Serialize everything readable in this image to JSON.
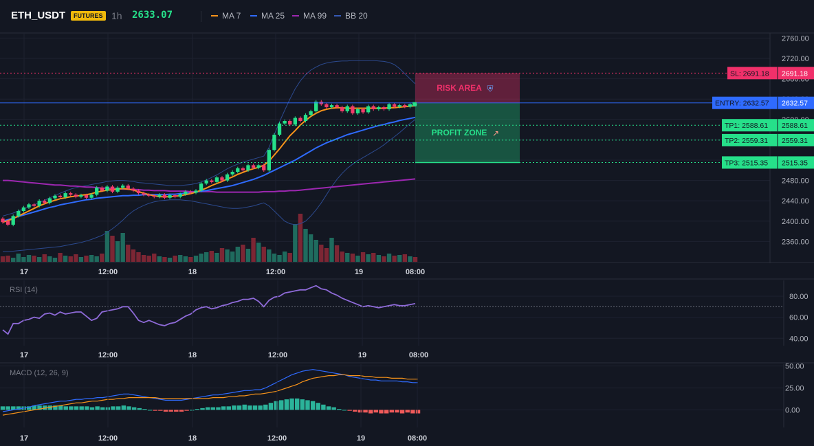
{
  "header": {
    "symbol": "ETH_USDT",
    "badge": "FUTURES",
    "timeframe": "1h",
    "last_price": "2633.07",
    "legend": [
      {
        "label": "MA 7",
        "color": "#f7931a"
      },
      {
        "label": "MA 25",
        "color": "#2f6bff"
      },
      {
        "label": "MA 99",
        "color": "#9c27b0"
      },
      {
        "label": "BB 20",
        "color": "#1e3a8a"
      }
    ]
  },
  "colors": {
    "background": "#131722",
    "grid": "#1e2230",
    "up": "#26e08a",
    "down": "#f23c6a",
    "vol_up": "#1f6b5e",
    "vol_down": "#7c2634"
  },
  "chart_data": [
    {
      "type": "candlestick",
      "name": "price",
      "ylim": [
        2320,
        2770
      ],
      "y_ticks": [
        "2760.00",
        "2720.00",
        "2680.00",
        "2640.00",
        "2600.00",
        "2560.00",
        "2520.00",
        "2480.00",
        "2440.00",
        "2400.00",
        "2360.00"
      ],
      "x_ticks": [
        "17",
        "12:00",
        "18",
        "12:00",
        "19",
        "08:00"
      ],
      "candles_hourly": [
        [
          2405,
          2398
        ],
        [
          2400,
          2393
        ],
        [
          2393,
          2410
        ],
        [
          2410,
          2420
        ],
        [
          2420,
          2427
        ],
        [
          2427,
          2433
        ],
        [
          2433,
          2430
        ],
        [
          2430,
          2440
        ],
        [
          2440,
          2436
        ],
        [
          2436,
          2445
        ],
        [
          2445,
          2450
        ],
        [
          2450,
          2447
        ],
        [
          2447,
          2455
        ],
        [
          2455,
          2452
        ],
        [
          2452,
          2448
        ],
        [
          2448,
          2451
        ],
        [
          2451,
          2446
        ],
        [
          2446,
          2452
        ],
        [
          2452,
          2466
        ],
        [
          2466,
          2460
        ],
        [
          2460,
          2468
        ],
        [
          2468,
          2458
        ],
        [
          2458,
          2466
        ],
        [
          2466,
          2470
        ],
        [
          2470,
          2464
        ],
        [
          2464,
          2460
        ],
        [
          2460,
          2455
        ],
        [
          2455,
          2452
        ],
        [
          2452,
          2450
        ],
        [
          2450,
          2448
        ],
        [
          2448,
          2452
        ],
        [
          2452,
          2446
        ],
        [
          2446,
          2451
        ],
        [
          2451,
          2448
        ],
        [
          2448,
          2453
        ],
        [
          2453,
          2458
        ],
        [
          2458,
          2456
        ],
        [
          2456,
          2460
        ],
        [
          2460,
          2474
        ],
        [
          2474,
          2480
        ],
        [
          2480,
          2477
        ],
        [
          2477,
          2486
        ],
        [
          2486,
          2480
        ],
        [
          2480,
          2492
        ],
        [
          2492,
          2497
        ],
        [
          2497,
          2504
        ],
        [
          2504,
          2500
        ],
        [
          2500,
          2510
        ],
        [
          2510,
          2505
        ],
        [
          2505,
          2510
        ],
        [
          2510,
          2500
        ],
        [
          2500,
          2540
        ],
        [
          2540,
          2570
        ],
        [
          2570,
          2592
        ],
        [
          2592,
          2597
        ],
        [
          2597,
          2590
        ],
        [
          2590,
          2603
        ],
        [
          2603,
          2597
        ],
        [
          2597,
          2609
        ],
        [
          2609,
          2616
        ],
        [
          2616,
          2635
        ],
        [
          2635,
          2630
        ],
        [
          2630,
          2624
        ],
        [
          2624,
          2628
        ],
        [
          2628,
          2624
        ],
        [
          2624,
          2616
        ],
        [
          2616,
          2626
        ],
        [
          2626,
          2612
        ],
        [
          2612,
          2620
        ],
        [
          2620,
          2614
        ],
        [
          2614,
          2626
        ],
        [
          2626,
          2620
        ],
        [
          2620,
          2624
        ],
        [
          2624,
          2620
        ],
        [
          2620,
          2630
        ],
        [
          2630,
          2625
        ],
        [
          2625,
          2628
        ],
        [
          2628,
          2625
        ],
        [
          2625,
          2630
        ],
        [
          2630,
          2628
        ]
      ],
      "volume_hourly": [
        8,
        9,
        6,
        12,
        7,
        10,
        9,
        7,
        11,
        8,
        6,
        13,
        9,
        8,
        11,
        7,
        9,
        10,
        8,
        12,
        45,
        38,
        30,
        42,
        25,
        18,
        14,
        10,
        9,
        12,
        8,
        7,
        6,
        9,
        10,
        8,
        7,
        9,
        12,
        14,
        16,
        13,
        20,
        18,
        15,
        22,
        25,
        19,
        35,
        28,
        22,
        18,
        12,
        10,
        15,
        13,
        55,
        70,
        48,
        40,
        32,
        25,
        20,
        35,
        24,
        15,
        13,
        12,
        9,
        14,
        11,
        13,
        10,
        8,
        12,
        9,
        10,
        11,
        8,
        7
      ],
      "ma7_hourly": [
        2398,
        2401,
        2405,
        2410,
        2415,
        2420,
        2425,
        2430,
        2434,
        2438,
        2441,
        2444,
        2446,
        2448,
        2449,
        2451,
        2452,
        2454,
        2457,
        2459,
        2461,
        2462,
        2463,
        2464,
        2463,
        2461,
        2458,
        2455,
        2452,
        2450,
        2448,
        2448,
        2448,
        2449,
        2450,
        2452,
        2454,
        2457,
        2461,
        2465,
        2470,
        2474,
        2478,
        2483,
        2487,
        2492,
        2496,
        2500,
        2503,
        2506,
        2510,
        2518,
        2530,
        2542,
        2555,
        2568,
        2578,
        2589,
        2598,
        2606,
        2612,
        2617,
        2620,
        2622,
        2623,
        2623,
        2622,
        2622,
        2622,
        2622,
        2622,
        2622,
        2622,
        2622,
        2623,
        2623,
        2624,
        2625,
        2626,
        2627
      ],
      "ma25_hourly": [
        2400,
        2403,
        2406,
        2409,
        2412,
        2415,
        2418,
        2421,
        2424,
        2427,
        2429,
        2432,
        2434,
        2436,
        2438,
        2440,
        2442,
        2443,
        2445,
        2446,
        2447,
        2448,
        2449,
        2450,
        2450,
        2451,
        2451,
        2452,
        2452,
        2452,
        2452,
        2452,
        2453,
        2453,
        2454,
        2455,
        2456,
        2457,
        2459,
        2460,
        2462,
        2464,
        2466,
        2468,
        2470,
        2473,
        2476,
        2479,
        2482,
        2486,
        2490,
        2495,
        2500,
        2505,
        2510,
        2515,
        2520,
        2526,
        2532,
        2538,
        2544,
        2549,
        2554,
        2558,
        2562,
        2566,
        2570,
        2573,
        2576,
        2579,
        2582,
        2585,
        2588,
        2590,
        2593,
        2595,
        2598,
        2600,
        2602,
        2604
      ],
      "ma99_hourly": [
        2480,
        2480,
        2479,
        2478,
        2477,
        2476,
        2475,
        2474,
        2473,
        2472,
        2471,
        2471,
        2470,
        2469,
        2469,
        2468,
        2467,
        2467,
        2466,
        2465,
        2465,
        2464,
        2464,
        2463,
        2463,
        2462,
        2462,
        2461,
        2461,
        2460,
        2460,
        2460,
        2459,
        2459,
        2459,
        2459,
        2458,
        2458,
        2458,
        2458,
        2458,
        2457,
        2457,
        2457,
        2457,
        2457,
        2457,
        2457,
        2457,
        2457,
        2458,
        2458,
        2458,
        2459,
        2459,
        2460,
        2460,
        2461,
        2462,
        2463,
        2464,
        2465,
        2466,
        2467,
        2468,
        2469,
        2470,
        2471,
        2472,
        2473,
        2474,
        2475,
        2476,
        2477,
        2478,
        2479,
        2480,
        2481,
        2482,
        2483
      ],
      "bb_upper_hourly": [
        2410,
        2413,
        2416,
        2420,
        2424,
        2428,
        2432,
        2437,
        2441,
        2446,
        2450,
        2455,
        2459,
        2463,
        2466,
        2468,
        2470,
        2472,
        2474,
        2476,
        2478,
        2479,
        2480,
        2480,
        2479,
        2478,
        2476,
        2475,
        2474,
        2473,
        2472,
        2471,
        2470,
        2470,
        2470,
        2471,
        2472,
        2474,
        2477,
        2481,
        2486,
        2491,
        2497,
        2503,
        2508,
        2512,
        2516,
        2519,
        2522,
        2525,
        2528,
        2545,
        2570,
        2595,
        2618,
        2640,
        2660,
        2676,
        2688,
        2697,
        2703,
        2708,
        2711,
        2713,
        2714,
        2715,
        2715,
        2716,
        2716,
        2716,
        2716,
        2716,
        2715,
        2714,
        2712,
        2708,
        2700,
        2690,
        2680,
        2670
      ],
      "bb_lower_hourly": [
        2340,
        2340,
        2341,
        2342,
        2343,
        2344,
        2345,
        2346,
        2347,
        2348,
        2349,
        2350,
        2352,
        2354,
        2356,
        2358,
        2361,
        2364,
        2368,
        2372,
        2378,
        2385,
        2393,
        2402,
        2412,
        2420,
        2426,
        2431,
        2435,
        2438,
        2440,
        2441,
        2442,
        2442,
        2442,
        2441,
        2440,
        2438,
        2436,
        2434,
        2432,
        2430,
        2428,
        2426,
        2425,
        2425,
        2426,
        2428,
        2430,
        2433,
        2436,
        2430,
        2420,
        2410,
        2400,
        2395,
        2393,
        2395,
        2400,
        2410,
        2422,
        2436,
        2452,
        2468,
        2482,
        2494,
        2504,
        2512,
        2519,
        2525,
        2531,
        2537,
        2543,
        2550,
        2558,
        2566,
        2574,
        2583,
        2592,
        2600
      ],
      "levels": [
        {
          "label": "SL: 2691.18",
          "price": 2691.18,
          "value": "2691.18",
          "color": "#f0306a"
        },
        {
          "label": "ENTRY: 2632.57",
          "price": 2632.57,
          "value": "2632.57",
          "color": "#2f6bff"
        },
        {
          "label": "TP1: 2588.61",
          "price": 2588.61,
          "value": "2588.61",
          "color": "#26e08a"
        },
        {
          "label": "TP2: 2559.31",
          "price": 2559.31,
          "value": "2559.31",
          "color": "#26e08a"
        },
        {
          "label": "TP3: 2515.35",
          "price": 2515.35,
          "value": "2515.35",
          "color": "#26e08a"
        }
      ],
      "risk_area_label": "RISK AREA",
      "profit_zone_label": "PROFIT ZONE"
    },
    {
      "type": "line",
      "name": "RSI (14)",
      "ylim": [
        33,
        95
      ],
      "y_ticks": [
        "80.00",
        "60.00",
        "40.00"
      ],
      "reference": 70,
      "x_ticks": [
        "17",
        "12:00",
        "18",
        "12:00",
        "19",
        "08:00"
      ],
      "values": [
        48,
        44,
        54,
        54,
        57,
        58,
        60,
        59,
        63,
        64,
        62,
        65,
        63,
        64,
        65,
        65,
        61,
        57,
        59,
        65,
        66,
        67,
        68,
        70,
        70,
        64,
        57,
        55,
        57,
        55,
        53,
        52,
        54,
        55,
        58,
        61,
        63,
        67,
        69,
        70,
        68,
        69,
        71,
        72,
        74,
        75,
        77,
        77,
        78,
        75,
        70,
        76,
        79,
        80,
        83,
        84,
        85,
        86,
        86,
        88,
        90,
        87,
        86,
        83,
        81,
        78,
        76,
        74,
        72,
        70,
        71,
        70,
        69,
        70,
        71,
        72,
        71,
        71,
        72,
        73
      ]
    },
    {
      "type": "bar+line",
      "name": "MACD (12, 26, 9)",
      "ylim": [
        -20,
        52
      ],
      "y_ticks": [
        "50.00",
        "25.00",
        "0.00"
      ],
      "x_ticks": [
        "17",
        "12:00",
        "18",
        "12:00",
        "19",
        "08:00"
      ],
      "macd": [
        -2,
        -1,
        0,
        1,
        2,
        3,
        5,
        6,
        7,
        8,
        9,
        10,
        10,
        11,
        12,
        12,
        13,
        13,
        14,
        14,
        15,
        16,
        17,
        18,
        18,
        17,
        16,
        15,
        14,
        13,
        12,
        11,
        11,
        11,
        11,
        12,
        13,
        14,
        15,
        16,
        17,
        17,
        18,
        19,
        20,
        21,
        22,
        22,
        23,
        23,
        25,
        28,
        31,
        34,
        37,
        40,
        42,
        44,
        45,
        46,
        45,
        44,
        43,
        42,
        41,
        40,
        38,
        37,
        36,
        35,
        34,
        34,
        33,
        33,
        33,
        33,
        32,
        32,
        31,
        31
      ],
      "signal": [
        -6,
        -5,
        -4,
        -3,
        -2,
        -1,
        0,
        1,
        2,
        3,
        4,
        5,
        6,
        7,
        8,
        8,
        9,
        10,
        10,
        11,
        12,
        12,
        13,
        13,
        14,
        14,
        14,
        14,
        14,
        14,
        13,
        13,
        13,
        13,
        13,
        13,
        13,
        13,
        13,
        13,
        14,
        14,
        14,
        15,
        15,
        16,
        16,
        17,
        18,
        18,
        19,
        20,
        21,
        23,
        25,
        27,
        29,
        32,
        34,
        36,
        37,
        38,
        39,
        39,
        40,
        40,
        39,
        39,
        39,
        38,
        38,
        37,
        37,
        37,
        36,
        36,
        36,
        35,
        35,
        35
      ],
      "histogram": [
        4,
        4,
        4,
        4,
        4,
        4,
        5,
        5,
        5,
        5,
        5,
        5,
        4,
        4,
        4,
        4,
        4,
        3,
        4,
        3,
        3,
        4,
        4,
        5,
        4,
        3,
        2,
        1,
        0,
        -1,
        -1,
        -2,
        -2,
        -2,
        -2,
        -1,
        0,
        1,
        2,
        3,
        3,
        3,
        4,
        4,
        5,
        5,
        6,
        5,
        5,
        5,
        6,
        8,
        10,
        11,
        12,
        13,
        13,
        12,
        11,
        10,
        8,
        6,
        4,
        3,
        1,
        0,
        -1,
        -2,
        -3,
        -3,
        -4,
        -3,
        -4,
        -4,
        -3,
        -3,
        -4,
        -3,
        -4,
        -4
      ]
    }
  ]
}
